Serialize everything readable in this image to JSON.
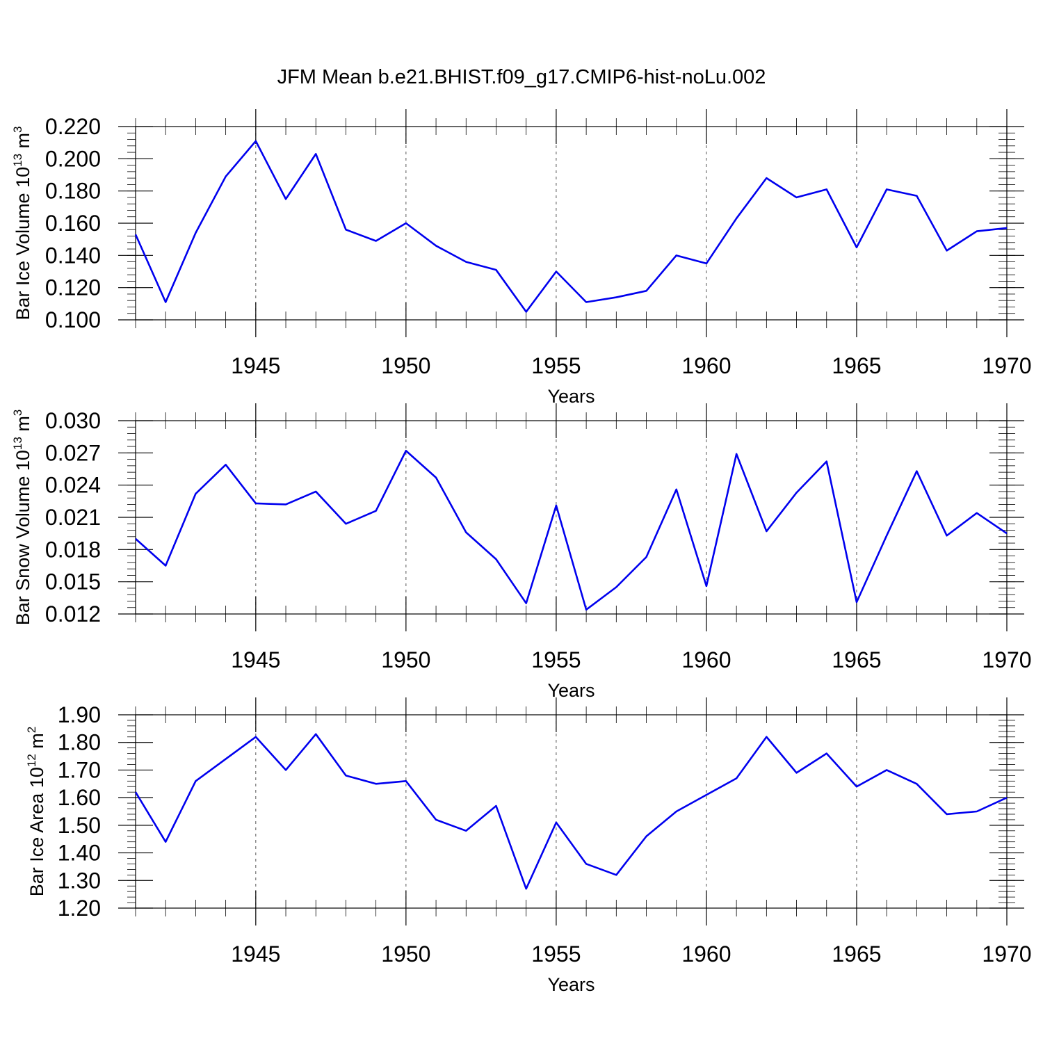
{
  "figure": {
    "title": "JFM Mean b.e21.BHIST.f09_g17.CMIP6-hist-noLu.002"
  },
  "colors": {
    "series": "#0000ee",
    "axis": "#000000",
    "grid": "#555555"
  },
  "chart_data": [
    {
      "type": "line",
      "ylabel": "Bar Ice Volume",
      "yunit_base": "10",
      "yunit_exp": "13",
      "yunit_tail": "m",
      "yunit_tail_exp": "3",
      "xlabel": "Years",
      "xlim": [
        1941,
        1970
      ],
      "ylim": [
        0.1,
        0.22
      ],
      "ytick_values": [
        0.1,
        0.12,
        0.14,
        0.16,
        0.18,
        0.2,
        0.22
      ],
      "ytick_labels": [
        "0.100",
        "0.120",
        "0.140",
        "0.160",
        "0.180",
        "0.200",
        "0.220"
      ],
      "xtick_values": [
        1945,
        1950,
        1955,
        1960,
        1965,
        1970
      ],
      "xtick_labels": [
        "1945",
        "1950",
        "1955",
        "1960",
        "1965",
        "1970"
      ],
      "y_minor_step": 0.004,
      "grid": "vertical dashed at major x ticks",
      "series": [
        {
          "name": "Bar Ice Volume",
          "x": [
            1941,
            1942,
            1943,
            1944,
            1945,
            1946,
            1947,
            1948,
            1949,
            1950,
            1951,
            1952,
            1953,
            1954,
            1955,
            1956,
            1957,
            1958,
            1959,
            1960,
            1961,
            1962,
            1963,
            1964,
            1965,
            1966,
            1967,
            1968,
            1969,
            1970
          ],
          "values": [
            0.153,
            0.111,
            0.154,
            0.189,
            0.211,
            0.175,
            0.203,
            0.156,
            0.149,
            0.16,
            0.146,
            0.136,
            0.131,
            0.105,
            0.13,
            0.111,
            0.114,
            0.118,
            0.14,
            0.135,
            0.163,
            0.188,
            0.176,
            0.181,
            0.145,
            0.181,
            0.177,
            0.143,
            0.155,
            0.157
          ]
        }
      ]
    },
    {
      "type": "line",
      "ylabel": "Bar Snow Volume",
      "yunit_base": "10",
      "yunit_exp": "13",
      "yunit_tail": "m",
      "yunit_tail_exp": "3",
      "xlabel": "Years",
      "xlim": [
        1941,
        1970
      ],
      "ylim": [
        0.012,
        0.03
      ],
      "ytick_values": [
        0.012,
        0.015,
        0.018,
        0.021,
        0.024,
        0.027,
        0.03
      ],
      "ytick_labels": [
        "0.012",
        "0.015",
        "0.018",
        "0.021",
        "0.024",
        "0.027",
        "0.030"
      ],
      "xtick_values": [
        1945,
        1950,
        1955,
        1960,
        1965,
        1970
      ],
      "xtick_labels": [
        "1945",
        "1950",
        "1955",
        "1960",
        "1965",
        "1970"
      ],
      "y_minor_step": 0.0006,
      "grid": "vertical dashed at major x ticks",
      "series": [
        {
          "name": "Bar Snow Volume",
          "x": [
            1941,
            1942,
            1943,
            1944,
            1945,
            1946,
            1947,
            1948,
            1949,
            1950,
            1951,
            1952,
            1953,
            1954,
            1955,
            1956,
            1957,
            1958,
            1959,
            1960,
            1961,
            1962,
            1963,
            1964,
            1965,
            1966,
            1967,
            1968,
            1969,
            1970
          ],
          "values": [
            0.019,
            0.0165,
            0.0232,
            0.0259,
            0.0223,
            0.0222,
            0.0234,
            0.0204,
            0.0216,
            0.0272,
            0.0247,
            0.0196,
            0.0171,
            0.013,
            0.0221,
            0.0124,
            0.0145,
            0.0173,
            0.0236,
            0.0146,
            0.0269,
            0.0197,
            0.0233,
            0.0262,
            0.0131,
            0.0193,
            0.0253,
            0.0193,
            0.0214,
            0.0195
          ]
        }
      ]
    },
    {
      "type": "line",
      "ylabel": "Bar Ice Area",
      "yunit_base": "10",
      "yunit_exp": "12",
      "yunit_tail": "m",
      "yunit_tail_exp": "2",
      "xlabel": "Years",
      "xlim": [
        1941,
        1970
      ],
      "ylim": [
        1.2,
        1.9
      ],
      "ytick_values": [
        1.2,
        1.3,
        1.4,
        1.5,
        1.6,
        1.7,
        1.8,
        1.9
      ],
      "ytick_labels": [
        "1.20",
        "1.30",
        "1.40",
        "1.50",
        "1.60",
        "1.70",
        "1.80",
        "1.90"
      ],
      "xtick_values": [
        1945,
        1950,
        1955,
        1960,
        1965,
        1970
      ],
      "xtick_labels": [
        "1945",
        "1950",
        "1955",
        "1960",
        "1965",
        "1970"
      ],
      "y_minor_step": 0.02,
      "grid": "vertical dashed at major x ticks",
      "series": [
        {
          "name": "Bar Ice Area",
          "x": [
            1941,
            1942,
            1943,
            1944,
            1945,
            1946,
            1947,
            1948,
            1949,
            1950,
            1951,
            1952,
            1953,
            1954,
            1955,
            1956,
            1957,
            1958,
            1959,
            1960,
            1961,
            1962,
            1963,
            1964,
            1965,
            1966,
            1967,
            1968,
            1969,
            1970
          ],
          "values": [
            1.62,
            1.44,
            1.66,
            1.74,
            1.82,
            1.7,
            1.83,
            1.68,
            1.65,
            1.66,
            1.52,
            1.48,
            1.57,
            1.27,
            1.51,
            1.36,
            1.32,
            1.46,
            1.55,
            1.61,
            1.67,
            1.82,
            1.69,
            1.76,
            1.64,
            1.7,
            1.65,
            1.54,
            1.55,
            1.6
          ]
        }
      ]
    }
  ]
}
